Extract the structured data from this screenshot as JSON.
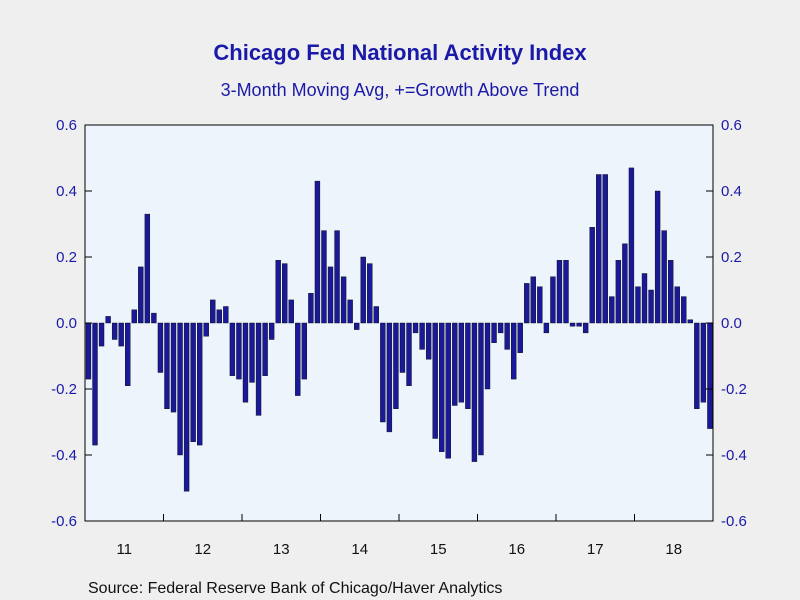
{
  "chart_data": {
    "type": "bar",
    "title": "Chicago Fed National Activity Index",
    "subtitle": "3-Month Moving Avg, +=Growth Above Trend",
    "source": "Source:  Federal Reserve Bank of Chicago/Haver Analytics",
    "ylim": [
      -0.6,
      0.6
    ],
    "yticks": [
      "0.6",
      "0.4",
      "0.2",
      "0.0",
      "-0.2",
      "-0.4",
      "-0.6"
    ],
    "ytick_values": [
      0.6,
      0.4,
      0.2,
      0.0,
      -0.2,
      -0.4,
      -0.6
    ],
    "year_labels": [
      "11",
      "12",
      "13",
      "14",
      "15",
      "16",
      "17",
      "18"
    ],
    "grid": false,
    "colors": {
      "bar": "#1a1a99",
      "plot_bg": "#edf4fc",
      "text": "#1a1aa8",
      "frame_bg": "#efefef"
    },
    "values": [
      -0.17,
      -0.37,
      -0.07,
      0.02,
      -0.05,
      -0.07,
      -0.19,
      0.04,
      0.17,
      0.33,
      0.03,
      -0.15,
      -0.26,
      -0.27,
      -0.4,
      -0.51,
      -0.36,
      -0.37,
      -0.04,
      0.07,
      0.04,
      0.05,
      -0.16,
      -0.17,
      -0.24,
      -0.18,
      -0.28,
      -0.16,
      -0.05,
      0.19,
      0.18,
      0.07,
      -0.22,
      -0.17,
      0.09,
      0.43,
      0.28,
      0.17,
      0.28,
      0.14,
      0.07,
      -0.02,
      0.2,
      0.18,
      0.05,
      -0.3,
      -0.33,
      -0.26,
      -0.15,
      -0.19,
      -0.03,
      -0.08,
      -0.11,
      -0.35,
      -0.39,
      -0.41,
      -0.25,
      -0.24,
      -0.26,
      -0.42,
      -0.4,
      -0.2,
      -0.06,
      -0.03,
      -0.08,
      -0.17,
      -0.09,
      0.12,
      0.14,
      0.11,
      -0.03,
      0.14,
      0.19,
      0.19,
      -0.01,
      -0.01,
      -0.03,
      0.29,
      0.45,
      0.45,
      0.08,
      0.19,
      0.24,
      0.47,
      0.11,
      0.15,
      0.1,
      0.4,
      0.28,
      0.19,
      0.11,
      0.08,
      0.01,
      -0.26,
      -0.24,
      -0.32
    ]
  }
}
